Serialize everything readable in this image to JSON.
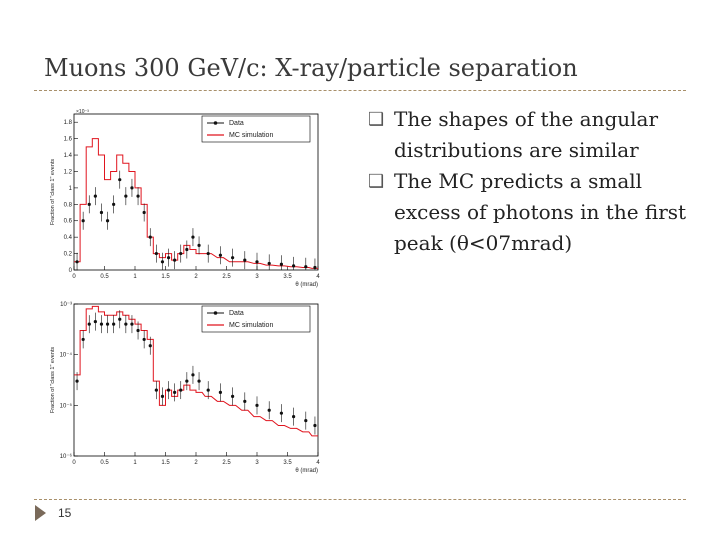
{
  "slide": {
    "title": "Muons 300 GeV/c: X-ray/particle separation",
    "page_number": "15",
    "bullets": [
      "The shapes of the angular distributions are similar",
      "The MC predicts a small excess of photons in the first peak (θ<07mrad)"
    ],
    "bullet_marker": "❑"
  },
  "colors": {
    "data": "#111111",
    "mc": "#e0141e",
    "rule": "#a88f6a"
  },
  "chart_data": [
    {
      "type": "line",
      "title": "",
      "xlabel": "θ (mrad)",
      "ylabel": "Fraction of \"class 1\" events",
      "y_scale_label": "×10⁻³",
      "xlim": [
        0,
        4
      ],
      "ylim": [
        0,
        0.0019
      ],
      "x_ticks": [
        "0",
        "0.5",
        "1",
        "1.5",
        "2",
        "2.5",
        "3",
        "3.5",
        "4"
      ],
      "y_ticks": [
        "0",
        "0.2",
        "0.4",
        "0.6",
        "0.8",
        "1",
        "1.2",
        "1.4",
        "1.6",
        "1.8"
      ],
      "legend": [
        "Data",
        "MC simulation"
      ],
      "series": [
        {
          "name": "MC simulation",
          "x": [
            0.05,
            0.15,
            0.25,
            0.35,
            0.45,
            0.55,
            0.65,
            0.75,
            0.85,
            0.95,
            1.05,
            1.15,
            1.25,
            1.35,
            1.45,
            1.55,
            1.65,
            1.75,
            1.85,
            1.95,
            2.05,
            2.2,
            2.4,
            2.6,
            2.8,
            3.0,
            3.2,
            3.4,
            3.6,
            3.8,
            3.95
          ],
          "y": [
            0.0001,
            0.0008,
            0.0015,
            0.0016,
            0.0014,
            0.0011,
            0.0012,
            0.0014,
            0.0013,
            0.0012,
            0.001,
            0.0008,
            0.0004,
            0.0002,
            0.00015,
            0.0002,
            0.00012,
            0.0002,
            0.0003,
            0.00025,
            0.0002,
            0.0002,
            0.00015,
            0.0001,
            0.0001,
            8e-05,
            6e-05,
            5e-05,
            4e-05,
            3e-05,
            2e-05
          ]
        },
        {
          "name": "Data",
          "x": [
            0.05,
            0.15,
            0.25,
            0.35,
            0.45,
            0.55,
            0.65,
            0.75,
            0.85,
            0.95,
            1.05,
            1.15,
            1.25,
            1.35,
            1.45,
            1.55,
            1.65,
            1.75,
            1.85,
            1.95,
            2.05,
            2.2,
            2.4,
            2.6,
            2.8,
            3.0,
            3.2,
            3.4,
            3.6,
            3.8,
            3.95
          ],
          "y": [
            0.0001,
            0.0006,
            0.0008,
            0.0009,
            0.0007,
            0.0006,
            0.0008,
            0.0011,
            0.0009,
            0.001,
            0.0009,
            0.0007,
            0.0004,
            0.0002,
            0.0001,
            0.00015,
            0.00012,
            0.0002,
            0.00025,
            0.0004,
            0.0003,
            0.0002,
            0.00018,
            0.00015,
            0.00012,
            0.0001,
            8e-05,
            7e-05,
            5e-05,
            4e-05,
            3e-05
          ]
        }
      ]
    },
    {
      "type": "line",
      "title": "",
      "xlabel": "θ (mrad)",
      "ylabel": "Fraction of \"class 1\" events",
      "y_scale": "log",
      "xlim": [
        0,
        4
      ],
      "ylim": [
        1e-06,
        0.001
      ],
      "x_ticks": [
        "0",
        "0.5",
        "1",
        "1.5",
        "2",
        "2.5",
        "3",
        "3.5",
        "4"
      ],
      "y_ticks": [
        "10⁻³",
        "10⁻⁴",
        "10⁻⁵",
        "10⁻⁶"
      ],
      "legend": [
        "Data",
        "MC simulation"
      ],
      "series": [
        {
          "name": "MC simulation",
          "x": [
            0.05,
            0.15,
            0.25,
            0.35,
            0.45,
            0.55,
            0.65,
            0.75,
            0.85,
            0.95,
            1.05,
            1.15,
            1.25,
            1.35,
            1.45,
            1.55,
            1.65,
            1.75,
            1.85,
            1.95,
            2.05,
            2.2,
            2.4,
            2.6,
            2.8,
            3.0,
            3.2,
            3.4,
            3.6,
            3.8,
            3.95
          ],
          "y": [
            4e-05,
            0.0003,
            0.0008,
            0.0009,
            0.0007,
            0.0006,
            0.0006,
            0.0007,
            0.0006,
            0.0005,
            0.0004,
            0.0003,
            0.0002,
            3e-05,
            1e-05,
            2e-05,
            1.5e-05,
            2e-05,
            2.5e-05,
            2e-05,
            1.8e-05,
            1.5e-05,
            1.2e-05,
            1e-05,
            8e-06,
            6e-06,
            5e-06,
            4e-06,
            3.5e-06,
            3e-06,
            2.5e-06
          ]
        },
        {
          "name": "Data",
          "x": [
            0.05,
            0.15,
            0.25,
            0.35,
            0.45,
            0.55,
            0.65,
            0.75,
            0.85,
            0.95,
            1.05,
            1.15,
            1.25,
            1.35,
            1.45,
            1.55,
            1.65,
            1.75,
            1.85,
            1.95,
            2.05,
            2.2,
            2.4,
            2.6,
            2.8,
            3.0,
            3.2,
            3.4,
            3.6,
            3.8,
            3.95
          ],
          "y": [
            3e-05,
            0.0002,
            0.0004,
            0.00045,
            0.0004,
            0.0004,
            0.0004,
            0.0005,
            0.0004,
            0.0004,
            0.0003,
            0.0002,
            0.00015,
            2e-05,
            1.5e-05,
            2e-05,
            1.8e-05,
            2e-05,
            3e-05,
            4e-05,
            3e-05,
            2e-05,
            1.8e-05,
            1.5e-05,
            1.2e-05,
            1e-05,
            8e-06,
            7e-06,
            6e-06,
            5e-06,
            4e-06
          ]
        }
      ]
    }
  ]
}
